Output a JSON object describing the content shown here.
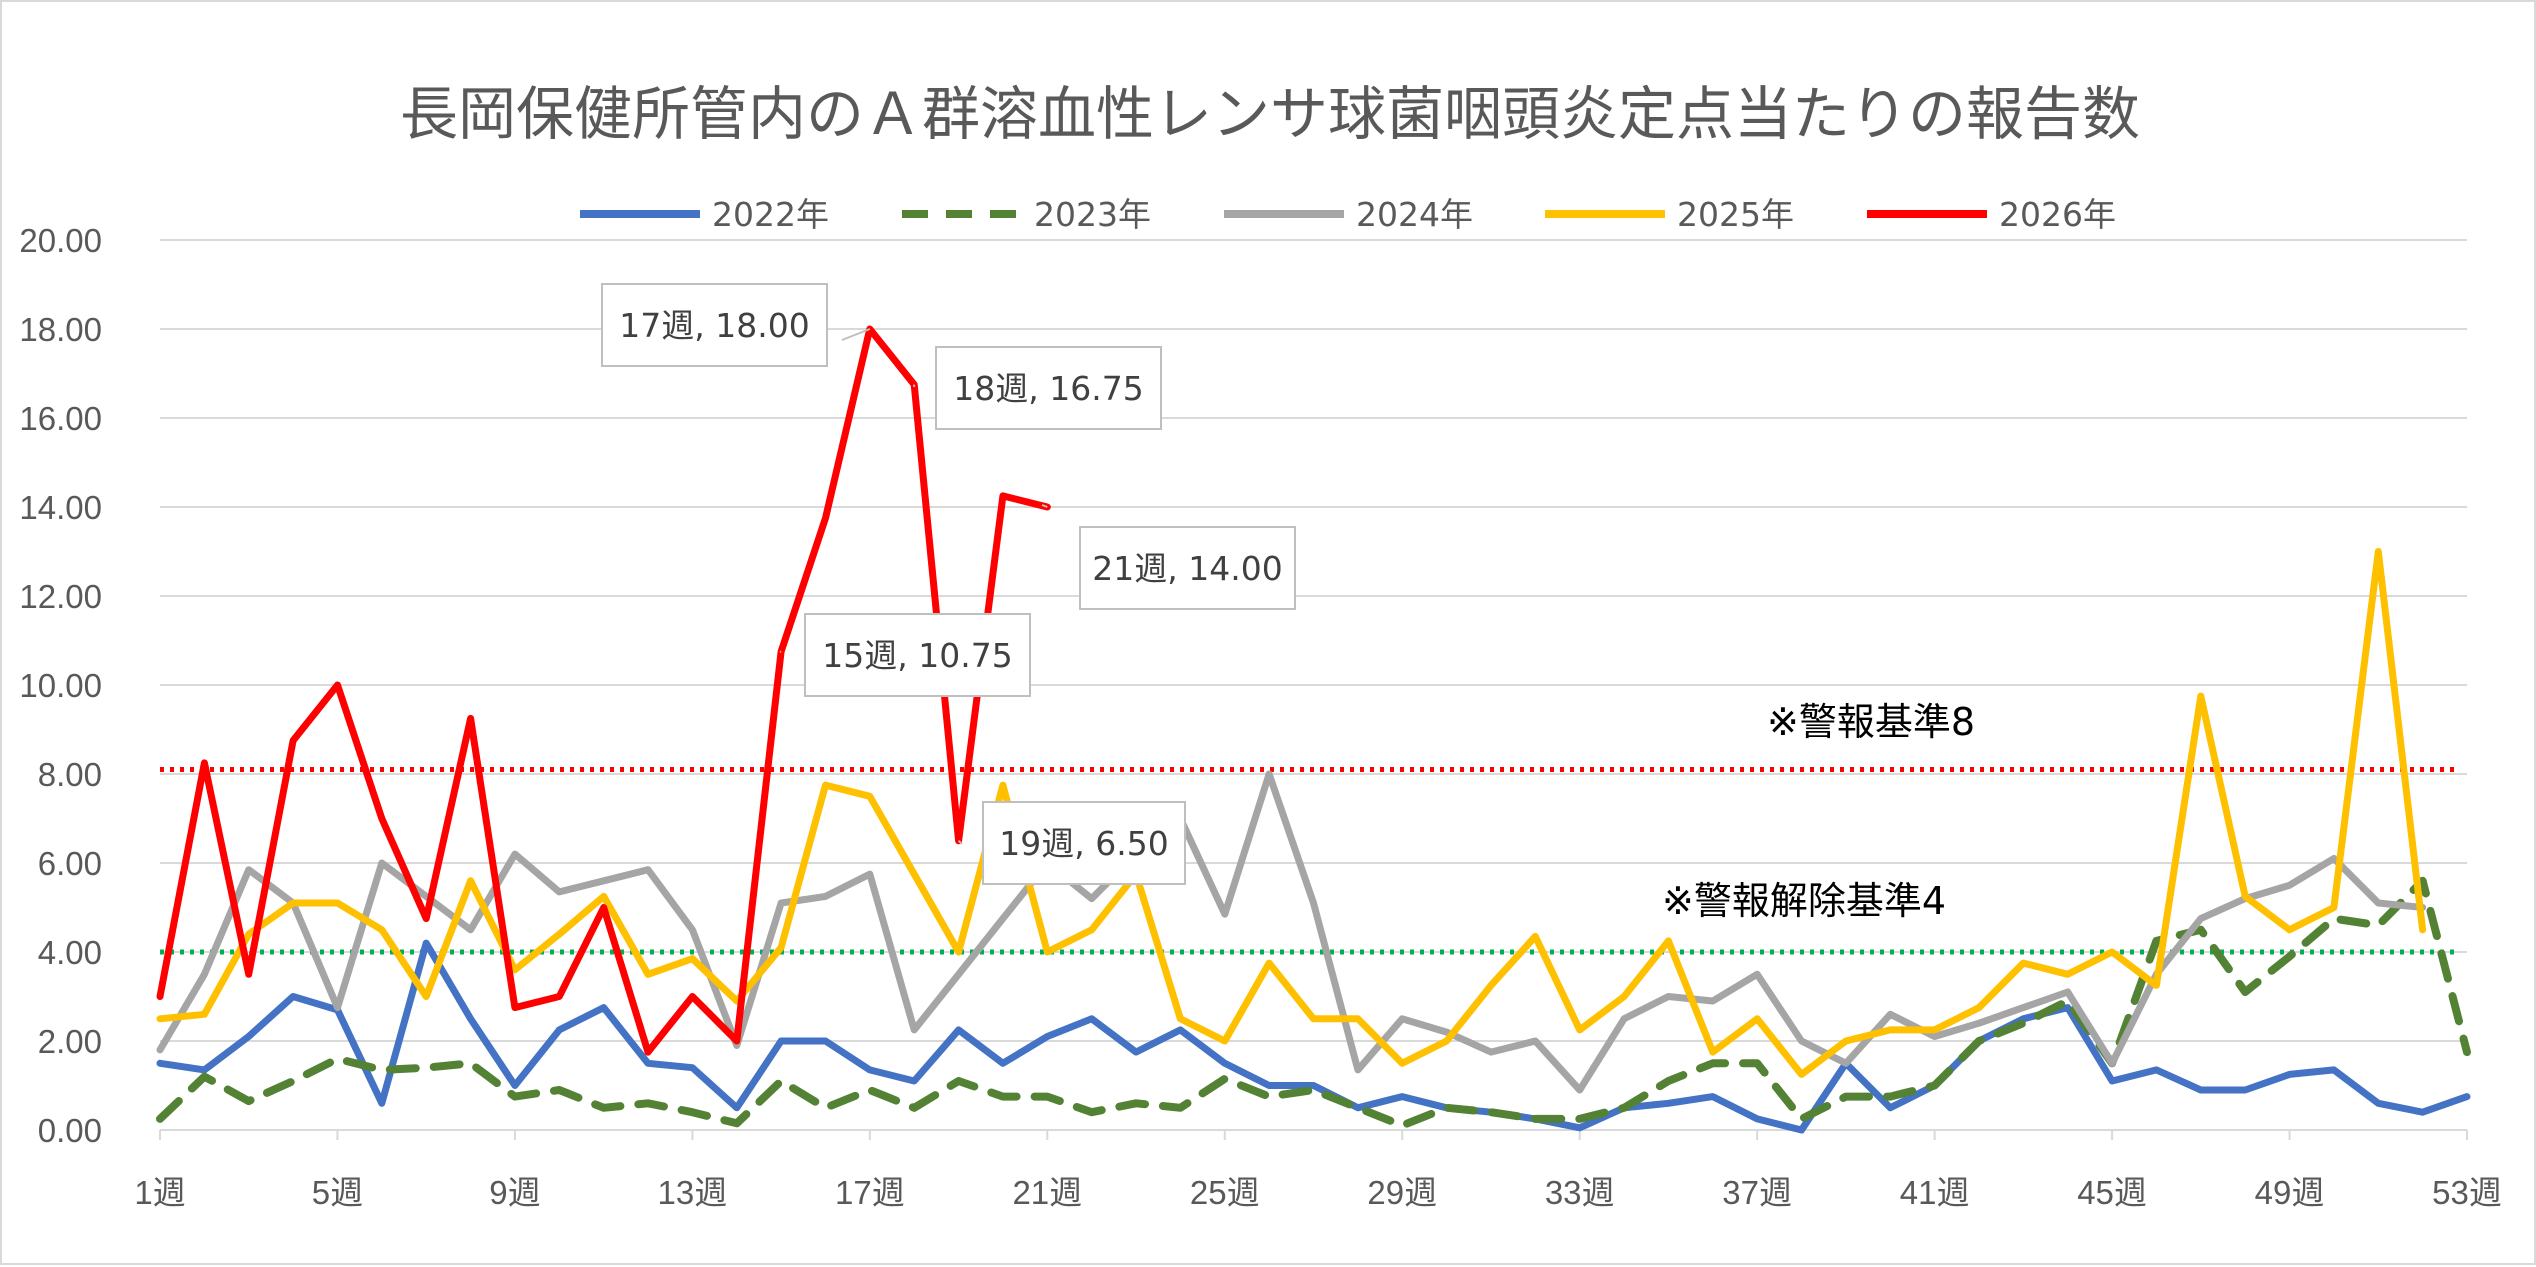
{
  "chart_data": {
    "type": "line",
    "title": "長岡保健所管内のＡ群溶血性レンサ球菌咽頭炎定点当たりの報告数",
    "ylim": [
      0,
      20
    ],
    "yticks": [
      "0.00",
      "2.00",
      "4.00",
      "6.00",
      "8.00",
      "10.00",
      "12.00",
      "14.00",
      "16.00",
      "18.00",
      "20.00"
    ],
    "xticks": [
      "1週",
      "5週",
      "9週",
      "13週",
      "17週",
      "21週",
      "25週",
      "29週",
      "33週",
      "37週",
      "41週",
      "45週",
      "49週",
      "53週"
    ],
    "xrange": [
      1,
      53
    ],
    "grid": true,
    "legend_position": "top",
    "series": [
      {
        "name": "2022年",
        "color": "#4472c4",
        "dash": "solid",
        "values": [
          1.5,
          1.35,
          2.1,
          3.0,
          2.7,
          0.6,
          4.2,
          2.5,
          1.0,
          2.25,
          2.75,
          1.5,
          1.4,
          0.5,
          2.0,
          2.0,
          1.35,
          1.1,
          2.25,
          1.5,
          2.1,
          2.5,
          1.75,
          2.25,
          1.5,
          1.0,
          1.0,
          0.5,
          0.75,
          0.5,
          0.4,
          0.25,
          0.05,
          0.5,
          0.6,
          0.75,
          0.25,
          0.0,
          1.5,
          0.5,
          1.0,
          2.0,
          2.5,
          2.75,
          1.1,
          1.35,
          0.9,
          0.9,
          1.25,
          1.35,
          0.6,
          0.4,
          0.75
        ]
      },
      {
        "name": "2023年",
        "color": "#548235",
        "dash": "dashed",
        "values": [
          0.25,
          1.2,
          0.65,
          1.1,
          1.6,
          1.35,
          1.4,
          1.5,
          0.75,
          0.9,
          0.5,
          0.6,
          0.4,
          0.15,
          1.1,
          0.5,
          0.9,
          0.5,
          1.1,
          0.75,
          0.75,
          0.4,
          0.6,
          0.5,
          1.15,
          0.75,
          0.9,
          0.5,
          0.1,
          0.5,
          0.4,
          0.25,
          0.25,
          0.5,
          1.1,
          1.5,
          1.5,
          0.25,
          0.75,
          0.75,
          1.0,
          2.0,
          2.4,
          2.9,
          1.5,
          4.25,
          4.5,
          3.1,
          3.9,
          4.75,
          4.6,
          5.6,
          1.75
        ]
      },
      {
        "name": "2024年",
        "color": "#a5a5a5",
        "dash": "solid",
        "values": [
          1.8,
          3.5,
          5.85,
          5.1,
          2.75,
          6.0,
          5.25,
          4.5,
          6.2,
          5.35,
          5.6,
          5.85,
          4.5,
          1.9,
          5.1,
          5.25,
          5.75,
          2.25,
          3.5,
          4.75,
          6.0,
          5.2,
          6.2,
          7.0,
          4.85,
          8.0,
          5.1,
          1.35,
          2.5,
          2.2,
          1.75,
          2.0,
          0.9,
          2.5,
          3.0,
          2.9,
          3.5,
          2.0,
          1.5,
          2.6,
          2.1,
          2.4,
          2.75,
          3.1,
          1.5,
          3.5,
          4.75,
          5.2,
          5.5,
          6.1,
          5.1,
          5.0
        ]
      },
      {
        "name": "2025年",
        "color": "#ffc000",
        "dash": "solid",
        "values": [
          2.5,
          2.6,
          4.4,
          5.1,
          5.1,
          4.5,
          3.0,
          5.6,
          3.6,
          4.4,
          5.25,
          3.5,
          3.85,
          2.9,
          4.1,
          7.75,
          7.5,
          5.75,
          4.0,
          7.75,
          4.0,
          4.5,
          5.75,
          2.5,
          2.0,
          3.75,
          2.5,
          2.5,
          1.5,
          2.0,
          3.25,
          4.35,
          2.25,
          3.0,
          4.25,
          1.75,
          2.5,
          1.25,
          2.0,
          2.25,
          2.25,
          2.75,
          3.75,
          3.5,
          4.0,
          3.25,
          9.75,
          5.25,
          4.5,
          5.0,
          13.0,
          4.5
        ]
      },
      {
        "name": "2026年",
        "color": "#ff0000",
        "dash": "solid",
        "values": [
          3.0,
          8.25,
          3.5,
          8.75,
          10.0,
          7.0,
          4.75,
          9.25,
          2.75,
          3.0,
          5.0,
          1.75,
          3.0,
          2.0,
          10.75,
          13.75,
          18.0,
          16.75,
          6.5,
          14.25,
          14.0
        ]
      }
    ],
    "reference_lines": [
      {
        "value": 8.1,
        "color": "#ff0000",
        "label": "※警報基準8"
      },
      {
        "value": 4.0,
        "color": "#00b050",
        "label": "※警報解除基準4"
      }
    ],
    "data_labels": [
      {
        "week": 17,
        "value": 18.0,
        "text": "17週, 18.00"
      },
      {
        "week": 18,
        "value": 16.75,
        "text": "18週, 16.75"
      },
      {
        "week": 21,
        "value": 14.0,
        "text": "21週, 14.00"
      },
      {
        "week": 15,
        "value": 10.75,
        "text": "15週, 10.75"
      },
      {
        "week": 19,
        "value": 6.5,
        "text": "19週, 6.50"
      }
    ]
  }
}
